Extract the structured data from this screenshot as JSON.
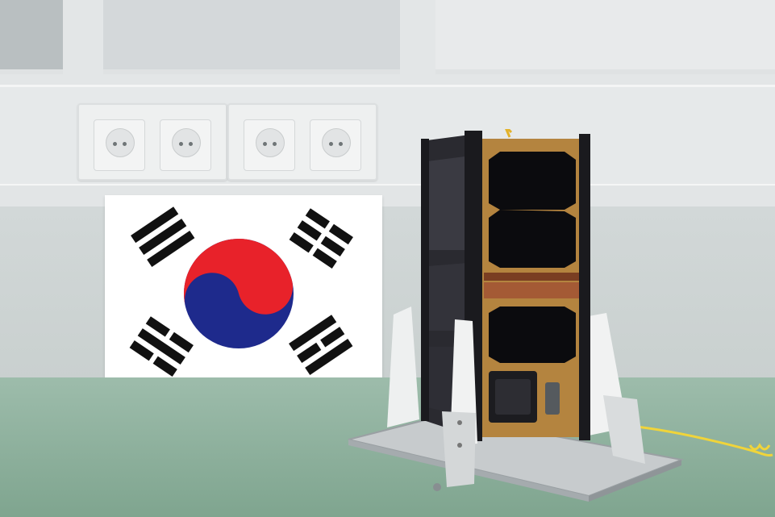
{
  "scene": {
    "subject": "cubesat",
    "colors": {
      "flag_red": "#e8222a",
      "flag_blue": "#1e2a8c",
      "trigram_black": "#111111",
      "panel_gold": "#b4843f",
      "solar_cell": "#0b0b0e",
      "rail_black": "#1a1a1e",
      "mount_white": "#f1f2f2",
      "baseplate_steel": "#c7cbcd",
      "table_green": "#8fb39e",
      "cable_yellow": "#f0d43a"
    },
    "icons": [
      "flag-of-south-korea",
      "power-outlet",
      "cubesat",
      "mounting-stand",
      "cable"
    ]
  }
}
